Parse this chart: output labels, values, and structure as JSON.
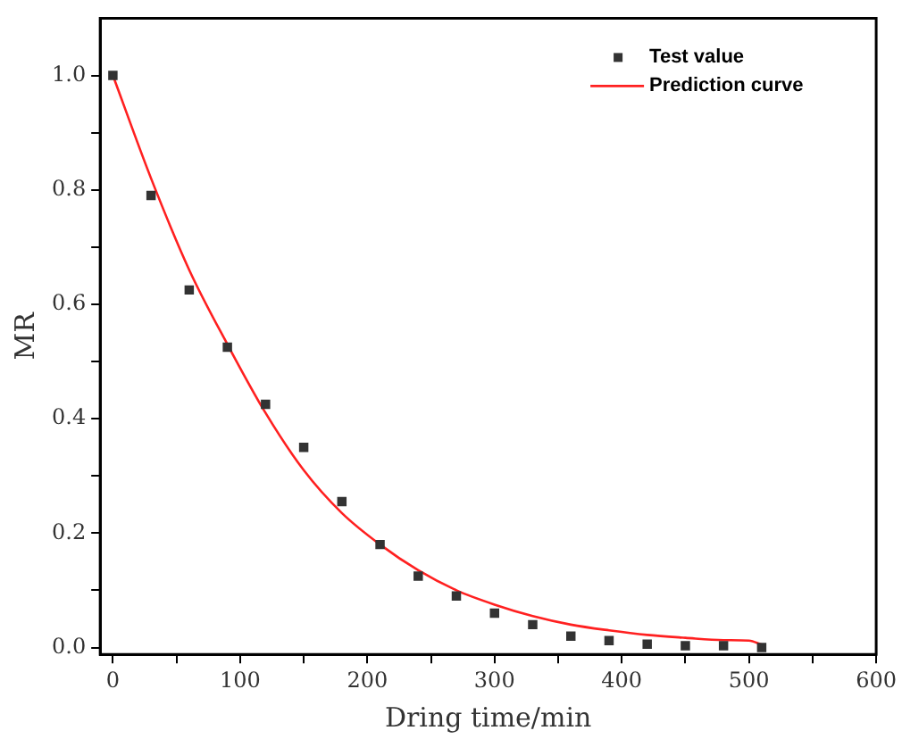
{
  "chart_data": {
    "type": "scatter",
    "xlabel": "Dring time/min",
    "ylabel": "MR",
    "xlim": [
      -10,
      600
    ],
    "ylim": [
      -0.012,
      1.1
    ],
    "xticks": [
      0,
      {
        "value": 50,
        "label": null
      },
      100,
      {
        "value": 150,
        "label": null
      },
      200,
      {
        "value": 250,
        "label": null
      },
      300,
      {
        "value": 350,
        "label": null
      },
      400,
      {
        "value": 450,
        "label": null
      },
      500,
      {
        "value": 550,
        "label": null
      },
      600
    ],
    "yticks": [
      {
        "value": 0,
        "label": "0.0"
      },
      {
        "value": 0.1,
        "label": null
      },
      {
        "value": 0.2,
        "label": "0.2"
      },
      {
        "value": 0.3,
        "label": null
      },
      {
        "value": 0.4,
        "label": "0.4"
      },
      {
        "value": 0.5,
        "label": null
      },
      {
        "value": 0.6,
        "label": "0.6"
      },
      {
        "value": 0.7,
        "label": null
      },
      {
        "value": 0.8,
        "label": "0.8"
      },
      {
        "value": 0.9,
        "label": null
      },
      {
        "value": 1.0,
        "label": "1.0"
      }
    ],
    "grid": false,
    "legend": "top right",
    "series": [
      {
        "name": "Test value",
        "marker": "square",
        "color": "#333333",
        "x": [
          0,
          30,
          60,
          90,
          120,
          150,
          180,
          210,
          240,
          270,
          300,
          330,
          360,
          390,
          420,
          450,
          480,
          510
        ],
        "values": [
          1.0,
          0.79,
          0.625,
          0.525,
          0.425,
          0.35,
          0.255,
          0.18,
          0.125,
          0.09,
          0.06,
          0.04,
          0.02,
          0.012,
          0.006,
          0.003,
          0.003,
          0.0
        ]
      },
      {
        "name": "Prediction curve",
        "type": "line",
        "marker": "none",
        "color": "#ff2020",
        "line_style": "solid",
        "x": [
          0,
          30,
          60,
          90,
          120,
          150,
          180,
          210,
          240,
          270,
          300,
          330,
          360,
          390,
          420,
          450,
          480,
          500,
          510
        ],
        "values": [
          1.0,
          0.82,
          0.66,
          0.53,
          0.41,
          0.31,
          0.235,
          0.18,
          0.135,
          0.1,
          0.075,
          0.055,
          0.04,
          0.03,
          0.022,
          0.017,
          0.013,
          0.012,
          0.005
        ]
      }
    ]
  }
}
